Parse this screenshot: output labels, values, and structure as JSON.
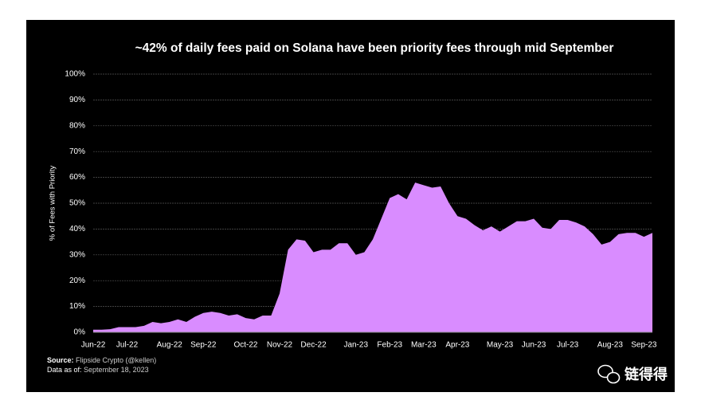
{
  "chart_data": {
    "type": "area",
    "title": "~42% of daily fees paid on Solana have been priority fees through mid September",
    "y_label": "% of Fees with Priority",
    "categories": [
      "Jun-22",
      null,
      null,
      null,
      "Jul-22",
      null,
      null,
      null,
      null,
      "Aug-22",
      null,
      null,
      null,
      "Sep-22",
      null,
      null,
      null,
      null,
      "Oct-22",
      null,
      null,
      null,
      "Nov-22",
      null,
      null,
      null,
      "Dec-22",
      null,
      null,
      null,
      null,
      "Jan-23",
      null,
      null,
      null,
      "Feb-23",
      null,
      null,
      null,
      "Mar-23",
      null,
      null,
      null,
      "Apr-23",
      null,
      null,
      null,
      null,
      "May-23",
      null,
      null,
      null,
      "Jun-23",
      null,
      null,
      null,
      "Jul-23",
      null,
      null,
      null,
      null,
      "Aug-23",
      null,
      null,
      null,
      "Sep-23",
      null
    ],
    "values": [
      1,
      1,
      1.2,
      2,
      2,
      2,
      2.5,
      4,
      3.5,
      4,
      5,
      4,
      6,
      7.5,
      8,
      7.5,
      6.5,
      7,
      5.5,
      5,
      6.5,
      6.5,
      15,
      32,
      36,
      35.5,
      31,
      32,
      32,
      34.5,
      34.5,
      30,
      31,
      36,
      44,
      52,
      53.5,
      51.5,
      58,
      57,
      56,
      56.5,
      50,
      45,
      44,
      41.5,
      39.5,
      41,
      39,
      41,
      43,
      43,
      44,
      40.5,
      40,
      43.5,
      43.5,
      42.5,
      41,
      38,
      34,
      35,
      38,
      38.5,
      38.5,
      37,
      38.5
    ],
    "color": "#d98cff",
    "ylim": [
      0,
      100
    ],
    "yticks": [
      {
        "value": 0,
        "label": "0%"
      },
      {
        "value": 10,
        "label": "10%"
      },
      {
        "value": 20,
        "label": "20%"
      },
      {
        "value": 30,
        "label": "30%"
      },
      {
        "value": 40,
        "label": "40%"
      },
      {
        "value": 50,
        "label": "50%"
      },
      {
        "value": 60,
        "label": "60%"
      },
      {
        "value": 70,
        "label": "70%"
      },
      {
        "value": 80,
        "label": "80%"
      },
      {
        "value": 90,
        "label": "90%"
      },
      {
        "value": 100,
        "label": "100%"
      }
    ],
    "grid": true,
    "source_label": "Source:",
    "source": "Flipside Crypto (@kellen)",
    "date_label": "Data as of:",
    "date": "September 18, 2023",
    "watermark": "链得得"
  }
}
